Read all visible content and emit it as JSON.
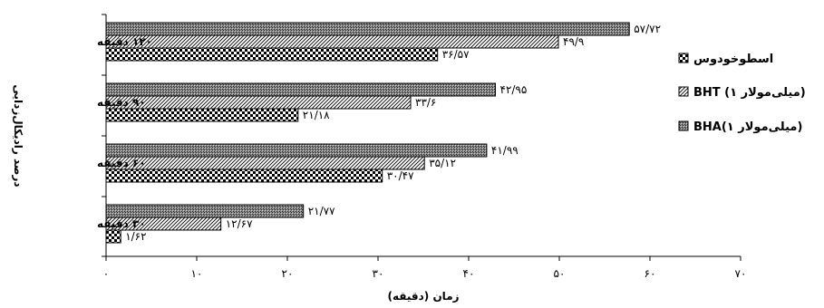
{
  "chart_data": {
    "type": "bar",
    "orientation": "horizontal",
    "xlabel": "زمان (دقیقه)",
    "ylabel": "درصد رادیکال‌زدایی",
    "xlim": [
      0,
      70
    ],
    "x_ticks": [
      0,
      10,
      20,
      30,
      40,
      50,
      60,
      70
    ],
    "x_tick_labels": [
      "۰",
      "۱۰",
      "۲۰",
      "۳۰",
      "۴۰",
      "۵۰",
      "۶۰",
      "۷۰"
    ],
    "categories": [
      "۳۰ دقیقه",
      "۶۰ دقیقه",
      "۹۰ دقیقه",
      "۱۲۰ دقیقه"
    ],
    "legend_position": "right",
    "grid": false,
    "series": [
      {
        "name": "BHA(۱ میلی‌مولار)",
        "pattern": "dark-crosshatch",
        "values": [
          21.77,
          41.99,
          42.95,
          57.72
        ],
        "labels": [
          "۲۱/۷۷",
          "۴۱/۹۹",
          "۴۲/۹۵",
          "۵۷/۷۲"
        ]
      },
      {
        "name": "BHT (۱ میلی‌مولار)",
        "pattern": "diagonal",
        "values": [
          12.67,
          35.12,
          33.6,
          49.9
        ],
        "labels": [
          "۱۲/۶۷",
          "۳۵/۱۲",
          "۳۳/۶",
          "۴۹/۹"
        ]
      },
      {
        "name": "اسطوخودوس",
        "pattern": "checker",
        "values": [
          1.62,
          30.47,
          21.18,
          36.57
        ],
        "labels": [
          "۱/۶۲",
          "۳۰/۴۷",
          "۲۱/۱۸",
          "۳۶/۵۷"
        ]
      }
    ],
    "legend_order": [
      2,
      1,
      0
    ]
  }
}
